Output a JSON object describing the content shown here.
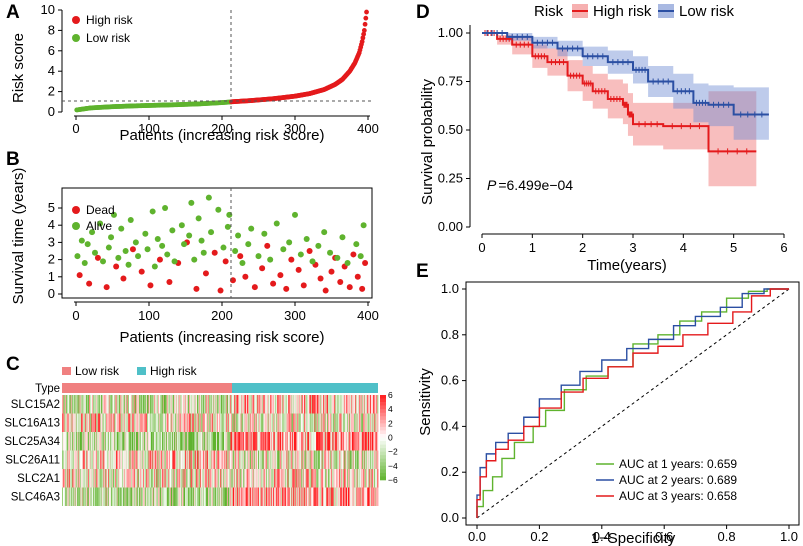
{
  "chart_data": [
    {
      "panel": "A",
      "type": "scatter",
      "title": "",
      "xlabel": "Patients (increasing risk score)",
      "ylabel": "Risk score",
      "xlim": [
        0,
        400
      ],
      "ylim": [
        0,
        10
      ],
      "x_ticks": [
        0,
        100,
        200,
        300,
        400
      ],
      "y_ticks": [
        0,
        2,
        4,
        6,
        8,
        10
      ],
      "cutoff_index": 212,
      "cutoff_value": 1.0,
      "n_patients": 398,
      "legend": [
        {
          "label": "High risk",
          "color": "#e41a1c"
        },
        {
          "label": "Low risk",
          "color": "#5fb32e"
        }
      ],
      "series": [
        {
          "name": "Low risk",
          "x": [
            1,
            20,
            50,
            80,
            110,
            140,
            170,
            200,
            212
          ],
          "values": [
            0.2,
            0.4,
            0.52,
            0.6,
            0.66,
            0.72,
            0.8,
            0.92,
            0.98
          ]
        },
        {
          "name": "High risk",
          "x": [
            213,
            240,
            270,
            300,
            320,
            340,
            355,
            365,
            375,
            382,
            388,
            392,
            395,
            398
          ],
          "values": [
            1.0,
            1.12,
            1.3,
            1.55,
            1.8,
            2.2,
            2.7,
            3.2,
            4.0,
            4.8,
            5.8,
            6.9,
            8.0,
            9.8
          ]
        }
      ]
    },
    {
      "panel": "B",
      "type": "scatter",
      "title": "",
      "xlabel": "Patients (increasing risk score)",
      "ylabel": "Survival time (years)",
      "xlim": [
        0,
        400
      ],
      "ylim": [
        0,
        5.6
      ],
      "x_ticks": [
        0,
        100,
        200,
        300,
        400
      ],
      "y_ticks": [
        0,
        1,
        2,
        3,
        4,
        5
      ],
      "cutoff_index": 212,
      "legend": [
        {
          "label": "Dead",
          "color": "#e41a1c"
        },
        {
          "label": "Alive",
          "color": "#5fb32e"
        }
      ],
      "series": [
        {
          "name": "Dead",
          "x": [
            5,
            18,
            30,
            42,
            55,
            65,
            78,
            90,
            102,
            115,
            128,
            140,
            152,
            165,
            178,
            190,
            198,
            205,
            215,
            225,
            232,
            245,
            255,
            262,
            270,
            280,
            288,
            295,
            305,
            312,
            320,
            328,
            335,
            342,
            350,
            355,
            362,
            368,
            375,
            380,
            386,
            392,
            396
          ],
          "values": [
            1.1,
            0.6,
            2.1,
            0.4,
            1.6,
            0.9,
            2.6,
            1.3,
            0.5,
            2.0,
            0.7,
            1.8,
            3.0,
            0.3,
            1.2,
            2.4,
            0.2,
            1.9,
            0.8,
            2.2,
            1.0,
            0.4,
            1.5,
            2.8,
            0.6,
            1.1,
            0.3,
            2.0,
            1.4,
            0.5,
            2.5,
            1.7,
            0.9,
            0.2,
            1.3,
            2.1,
            0.7,
            1.6,
            0.4,
            2.3,
            1.0,
            0.3,
            1.8
          ]
        },
        {
          "name": "Alive",
          "x": [
            2,
            8,
            12,
            16,
            22,
            26,
            33,
            37,
            45,
            48,
            52,
            58,
            62,
            68,
            72,
            75,
            82,
            85,
            95,
            98,
            105,
            108,
            112,
            118,
            122,
            125,
            132,
            135,
            145,
            148,
            155,
            158,
            162,
            168,
            172,
            175,
            182,
            185,
            195,
            202,
            208,
            210,
            218,
            222,
            228,
            236,
            240,
            250,
            258,
            266,
            275,
            284,
            292,
            300,
            308,
            316,
            324,
            332,
            340,
            348,
            358,
            365,
            372,
            384,
            390,
            394
          ],
          "values": [
            2.2,
            3.1,
            1.8,
            2.9,
            3.6,
            2.4,
            4.1,
            1.9,
            2.7,
            3.3,
            4.6,
            2.1,
            3.8,
            2.5,
            1.7,
            4.3,
            3.0,
            2.2,
            3.5,
            2.6,
            4.8,
            1.6,
            3.2,
            2.8,
            5.0,
            2.3,
            3.7,
            1.9,
            4.0,
            2.9,
            3.4,
            5.3,
            2.0,
            4.4,
            3.1,
            2.4,
            5.6,
            3.6,
            4.9,
            2.7,
            3.9,
            4.6,
            2.5,
            3.4,
            1.8,
            2.9,
            3.8,
            2.2,
            3.5,
            2.0,
            4.1,
            2.6,
            3.0,
            4.6,
            2.3,
            3.2,
            1.9,
            2.8,
            3.6,
            2.4,
            2.1,
            3.3,
            1.8,
            2.9,
            2.2,
            4.0
          ]
        }
      ]
    },
    {
      "panel": "C",
      "type": "heatmap",
      "title": "",
      "annotation_label": "Type",
      "rows": [
        "SLC15A2",
        "SLC16A13",
        "SLC25A34",
        "SLC26A11",
        "SLC2A1",
        "SLC46A3"
      ],
      "groups": [
        {
          "label": "Low risk",
          "color": "#f08080",
          "n": 212
        },
        {
          "label": "High risk",
          "color": "#4fc0c8",
          "n": 186
        }
      ],
      "color_scale": {
        "min": -6,
        "max": 6,
        "low": "#5fb32e",
        "mid": "#ffffff",
        "high": "#e41a1c"
      },
      "scale_ticks": [
        "6",
        "4",
        "2",
        "0",
        "−2",
        "−4",
        "−6"
      ]
    },
    {
      "panel": "D",
      "type": "line",
      "title": "",
      "xlabel": "Time(years)",
      "ylabel": "Survival probability",
      "xlim": [
        0,
        6
      ],
      "ylim": [
        0,
        1
      ],
      "x_ticks": [
        0,
        1,
        2,
        3,
        4,
        5,
        6
      ],
      "y_ticks": [
        "0.00",
        "0.25",
        "0.50",
        "0.75",
        "1.00"
      ],
      "legend_title": "Risk",
      "annotation": {
        "label": "P",
        "text": "=6.499e−04"
      },
      "series": [
        {
          "name": "High risk",
          "color": "#e41a1c",
          "x": [
            0,
            0.3,
            0.6,
            1.0,
            1.3,
            1.7,
            2.0,
            2.2,
            2.5,
            2.8,
            2.9,
            3.0,
            3.6,
            4.5,
            5.45
          ],
          "values": [
            1.0,
            0.97,
            0.94,
            0.88,
            0.85,
            0.78,
            0.74,
            0.7,
            0.66,
            0.63,
            0.58,
            0.53,
            0.52,
            0.39,
            0.39
          ],
          "ci_lower": [
            1.0,
            0.94,
            0.89,
            0.82,
            0.78,
            0.7,
            0.65,
            0.61,
            0.56,
            0.53,
            0.47,
            0.42,
            0.4,
            0.21,
            0.21
          ],
          "ci_upper": [
            1.0,
            0.99,
            0.98,
            0.94,
            0.92,
            0.86,
            0.83,
            0.79,
            0.76,
            0.74,
            0.69,
            0.64,
            0.64,
            0.7,
            0.7
          ]
        },
        {
          "name": "Low risk",
          "color": "#2b4fa3",
          "x": [
            0,
            0.5,
            1.0,
            1.5,
            2.0,
            2.5,
            3.0,
            3.3,
            3.8,
            4.2,
            4.5,
            5.0,
            5.7
          ],
          "values": [
            1.0,
            0.98,
            0.95,
            0.92,
            0.88,
            0.85,
            0.81,
            0.75,
            0.7,
            0.64,
            0.63,
            0.58,
            0.58
          ],
          "ci_lower": [
            1.0,
            0.96,
            0.92,
            0.88,
            0.83,
            0.79,
            0.74,
            0.67,
            0.61,
            0.54,
            0.52,
            0.45,
            0.45
          ],
          "ci_upper": [
            1.0,
            1.0,
            0.98,
            0.96,
            0.93,
            0.91,
            0.88,
            0.83,
            0.79,
            0.74,
            0.73,
            0.72,
            0.72
          ]
        }
      ]
    },
    {
      "panel": "E",
      "type": "line",
      "title": "",
      "xlabel": "1−Specificity",
      "ylabel": "Sensitivity",
      "xlim": [
        0,
        1
      ],
      "ylim": [
        0,
        1
      ],
      "x_ticks": [
        "0.0",
        "0.2",
        "0.4",
        "0.6",
        "0.8",
        "1.0"
      ],
      "y_ticks": [
        "0.0",
        "0.2",
        "0.4",
        "0.6",
        "0.8",
        "1.0"
      ],
      "series": [
        {
          "name": "AUC at 1 years: 0.659",
          "color": "#5fb32e",
          "x": [
            0,
            0.02,
            0.05,
            0.08,
            0.12,
            0.18,
            0.22,
            0.28,
            0.35,
            0.42,
            0.5,
            0.58,
            0.65,
            0.72,
            0.8,
            0.87,
            0.93,
            1.0
          ],
          "values": [
            0,
            0.05,
            0.12,
            0.18,
            0.26,
            0.33,
            0.4,
            0.47,
            0.56,
            0.62,
            0.66,
            0.76,
            0.8,
            0.86,
            0.9,
            0.96,
            0.99,
            1.0
          ]
        },
        {
          "name": "AUC at 2 years: 0.689",
          "color": "#2b4fa3",
          "x": [
            0,
            0.01,
            0.03,
            0.06,
            0.1,
            0.15,
            0.2,
            0.27,
            0.33,
            0.4,
            0.48,
            0.55,
            0.63,
            0.7,
            0.78,
            0.85,
            0.92,
            1.0
          ],
          "values": [
            0,
            0.1,
            0.22,
            0.28,
            0.33,
            0.37,
            0.44,
            0.52,
            0.58,
            0.64,
            0.69,
            0.74,
            0.78,
            0.84,
            0.88,
            0.92,
            0.98,
            1.0
          ]
        },
        {
          "name": "AUC at 3 years: 0.658",
          "color": "#e41a1c",
          "x": [
            0,
            0.01,
            0.03,
            0.06,
            0.1,
            0.15,
            0.2,
            0.27,
            0.34,
            0.42,
            0.5,
            0.58,
            0.66,
            0.74,
            0.82,
            0.88,
            0.94,
            1.0
          ],
          "values": [
            0,
            0.08,
            0.18,
            0.25,
            0.3,
            0.34,
            0.4,
            0.48,
            0.55,
            0.61,
            0.66,
            0.72,
            0.75,
            0.8,
            0.85,
            0.9,
            0.97,
            1.0
          ]
        }
      ]
    }
  ],
  "panel_letters": [
    "A",
    "B",
    "C",
    "D",
    "E"
  ]
}
